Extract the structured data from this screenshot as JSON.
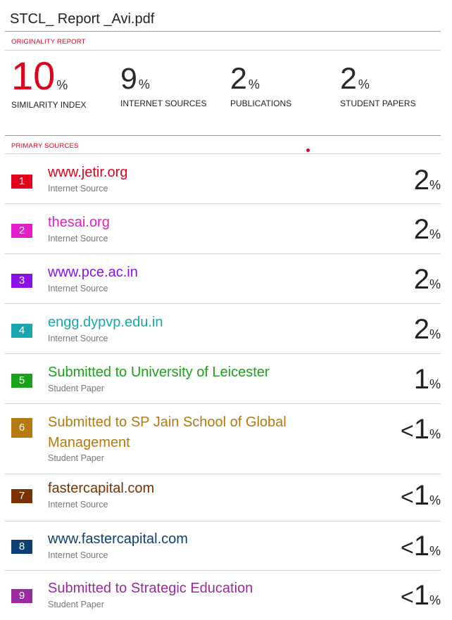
{
  "document": {
    "title": "STCL_ Report _Avi.pdf"
  },
  "originality": {
    "heading": "ORIGINALITY REPORT",
    "stats": [
      {
        "value": "10",
        "unit": "%",
        "label": "SIMILARITY INDEX"
      },
      {
        "value": "9",
        "unit": "%",
        "label": "INTERNET SOURCES"
      },
      {
        "value": "2",
        "unit": "%",
        "label": "PUBLICATIONS"
      },
      {
        "value": "2",
        "unit": "%",
        "label": "STUDENT PAPERS"
      }
    ]
  },
  "primary_sources": {
    "heading": "PRIMARY SOURCES",
    "items": [
      {
        "rank": "1",
        "name": "www.jetir.org",
        "type": "Internet Source",
        "prefix": "",
        "value": "2",
        "unit": "%",
        "color": "#e3001b"
      },
      {
        "rank": "2",
        "name": "thesai.org",
        "type": "Internet Source",
        "prefix": "",
        "value": "2",
        "unit": "%",
        "color": "#e11ec8"
      },
      {
        "rank": "3",
        "name": "www.pce.ac.in",
        "type": "Internet Source",
        "prefix": "",
        "value": "2",
        "unit": "%",
        "color": "#8b10e6"
      },
      {
        "rank": "4",
        "name": "engg.dypvp.edu.in",
        "type": "Internet Source",
        "prefix": "",
        "value": "2",
        "unit": "%",
        "color": "#1aa6b0"
      },
      {
        "rank": "5",
        "name": "Submitted to University of Leicester",
        "type": "Student Paper",
        "prefix": "",
        "value": "1",
        "unit": "%",
        "color": "#1aa31a"
      },
      {
        "rank": "6",
        "name": "Submitted to SP Jain School of Global",
        "name2": "Management",
        "type": "Student Paper",
        "prefix": "<",
        "value": "1",
        "unit": "%",
        "color": "#b5790f"
      },
      {
        "rank": "7",
        "name": "fastercapital.com",
        "type": "Internet Source",
        "prefix": "<",
        "value": "1",
        "unit": "%",
        "color": "#7a3200"
      },
      {
        "rank": "8",
        "name": "www.fastercapital.com",
        "type": "Internet Source",
        "prefix": "<",
        "value": "1",
        "unit": "%",
        "color": "#0d3f73"
      },
      {
        "rank": "9",
        "name": "Submitted to Strategic Education",
        "type": "Student Paper",
        "prefix": "<",
        "value": "1",
        "unit": "%",
        "color": "#9a2aa0"
      }
    ]
  }
}
